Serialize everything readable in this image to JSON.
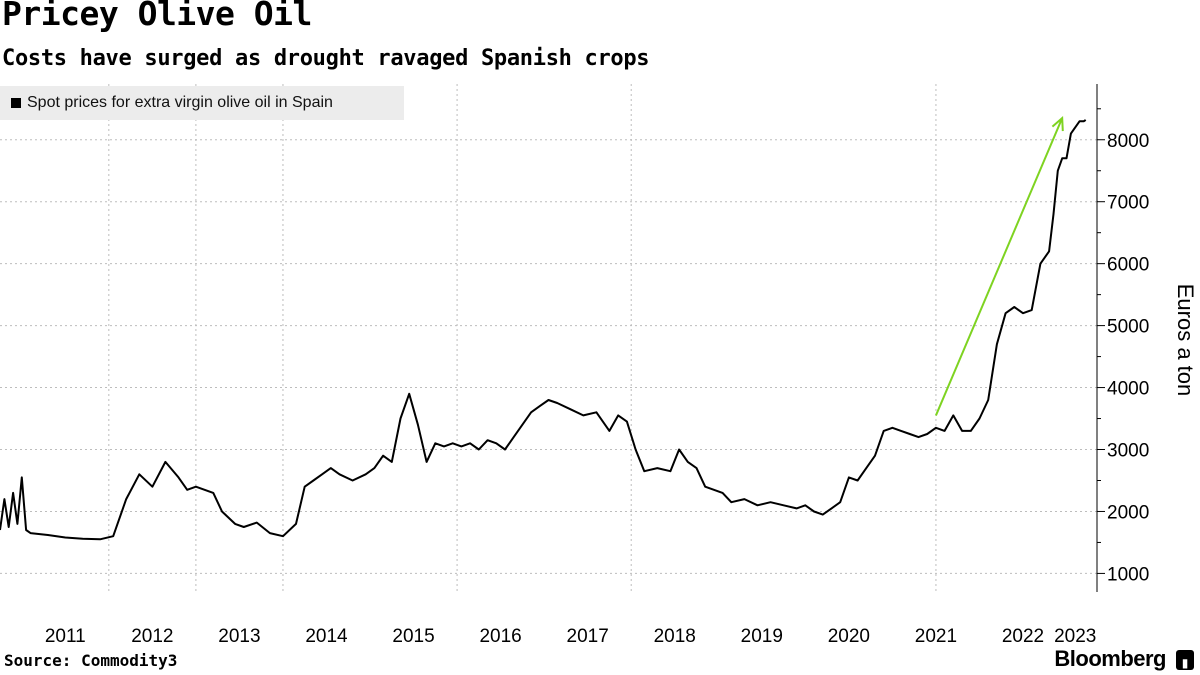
{
  "header": {
    "title": "Pricey Olive Oil",
    "subtitle": "Costs have surged as drought ravaged Spanish crops"
  },
  "footer": {
    "source": "Source: Commodity3",
    "brand": "Bloomberg"
  },
  "colors": {
    "line": "#000000",
    "arrow": "#7ed321",
    "grid": "#bdbdbd",
    "legend_bg": "#ececec"
  },
  "chart_data": {
    "type": "line",
    "title": "Pricey Olive Oil",
    "subtitle": "Costs have surged as drought ravaged Spanish crops",
    "xlabel": "",
    "ylabel": "Euros a ton",
    "xlim": [
      2010.75,
      2023.35
    ],
    "ylim": [
      700,
      8900
    ],
    "y_ticks": [
      1000,
      2000,
      3000,
      4000,
      5000,
      6000,
      7000,
      8000
    ],
    "y_tick_labels": [
      "1000",
      "2000",
      "3000",
      "4000",
      "5000",
      "6000",
      "7000",
      "8000"
    ],
    "x_tick_labels": [
      "2011",
      "2012",
      "2013",
      "2014",
      "2015",
      "2016",
      "2017",
      "2018",
      "2019",
      "2020",
      "2021",
      "2022",
      "2023"
    ],
    "x_tick_centers": [
      2011.5,
      2012.5,
      2013.5,
      2014.5,
      2015.5,
      2016.5,
      2017.5,
      2018.5,
      2019.5,
      2020.5,
      2021.5,
      2022.5,
      2023.1
    ],
    "x_gridlines": [
      2012,
      2013,
      2014,
      2016,
      2018,
      2021.5
    ],
    "grid": true,
    "legend": [
      "Spot prices for extra virgin olive oil in Spain"
    ],
    "legend_position": "top-left",
    "series": [
      {
        "name": "Spot prices for extra virgin olive oil in Spain",
        "x": [
          2010.75,
          2010.8,
          2010.85,
          2010.9,
          2010.95,
          2011.0,
          2011.05,
          2011.1,
          2011.3,
          2011.5,
          2011.7,
          2011.9,
          2012.05,
          2012.2,
          2012.35,
          2012.5,
          2012.65,
          2012.8,
          2012.9,
          2013.0,
          2013.1,
          2013.2,
          2013.3,
          2013.45,
          2013.55,
          2013.7,
          2013.85,
          2014.0,
          2014.15,
          2014.25,
          2014.35,
          2014.45,
          2014.55,
          2014.65,
          2014.8,
          2014.95,
          2015.05,
          2015.15,
          2015.25,
          2015.35,
          2015.45,
          2015.55,
          2015.65,
          2015.75,
          2015.85,
          2015.95,
          2016.05,
          2016.15,
          2016.25,
          2016.35,
          2016.45,
          2016.55,
          2016.65,
          2016.75,
          2016.85,
          2016.95,
          2017.05,
          2017.15,
          2017.3,
          2017.45,
          2017.6,
          2017.75,
          2017.85,
          2017.95,
          2018.05,
          2018.15,
          2018.3,
          2018.45,
          2018.55,
          2018.65,
          2018.75,
          2018.85,
          2018.95,
          2019.05,
          2019.15,
          2019.3,
          2019.45,
          2019.6,
          2019.75,
          2019.9,
          2020.0,
          2020.1,
          2020.2,
          2020.3,
          2020.4,
          2020.5,
          2020.6,
          2020.7,
          2020.8,
          2020.9,
          2021.0,
          2021.1,
          2021.2,
          2021.3,
          2021.4,
          2021.5,
          2021.6,
          2021.7,
          2021.8,
          2021.9,
          2022.0,
          2022.1,
          2022.2,
          2022.3,
          2022.4,
          2022.5,
          2022.6,
          2022.7,
          2022.8,
          2022.85,
          2022.9,
          2022.95,
          2023.0,
          2023.05,
          2023.1,
          2023.15,
          2023.2,
          2023.22
        ],
        "values": [
          1700,
          2200,
          1750,
          2300,
          1800,
          2550,
          1700,
          1650,
          1620,
          1580,
          1560,
          1550,
          1600,
          2200,
          2600,
          2400,
          2800,
          2550,
          2350,
          2400,
          2350,
          2300,
          2000,
          1800,
          1750,
          1820,
          1650,
          1600,
          1800,
          2400,
          2500,
          2600,
          2700,
          2600,
          2500,
          2600,
          2700,
          2900,
          2800,
          3500,
          3900,
          3400,
          2800,
          3100,
          3050,
          3100,
          3050,
          3100,
          3000,
          3150,
          3100,
          3000,
          3200,
          3400,
          3600,
          3700,
          3800,
          3750,
          3650,
          3550,
          3600,
          3300,
          3550,
          3450,
          3000,
          2650,
          2700,
          2650,
          3000,
          2800,
          2700,
          2400,
          2350,
          2300,
          2150,
          2200,
          2100,
          2150,
          2100,
          2050,
          2100,
          2000,
          1950,
          2050,
          2150,
          2550,
          2500,
          2700,
          2900,
          3300,
          3350,
          3300,
          3250,
          3200,
          3250,
          3350,
          3300,
          3550,
          3300,
          3300,
          3500,
          3800,
          4700,
          5200,
          5300,
          5200,
          5250,
          6000,
          6200,
          6800,
          7500,
          7700,
          7700,
          8100,
          8200,
          8300,
          8300,
          8320
        ]
      }
    ],
    "annotations": [
      {
        "type": "arrow",
        "from": [
          2021.5,
          3550
        ],
        "to": [
          2022.95,
          8350
        ],
        "color": "#7ed321"
      }
    ]
  }
}
